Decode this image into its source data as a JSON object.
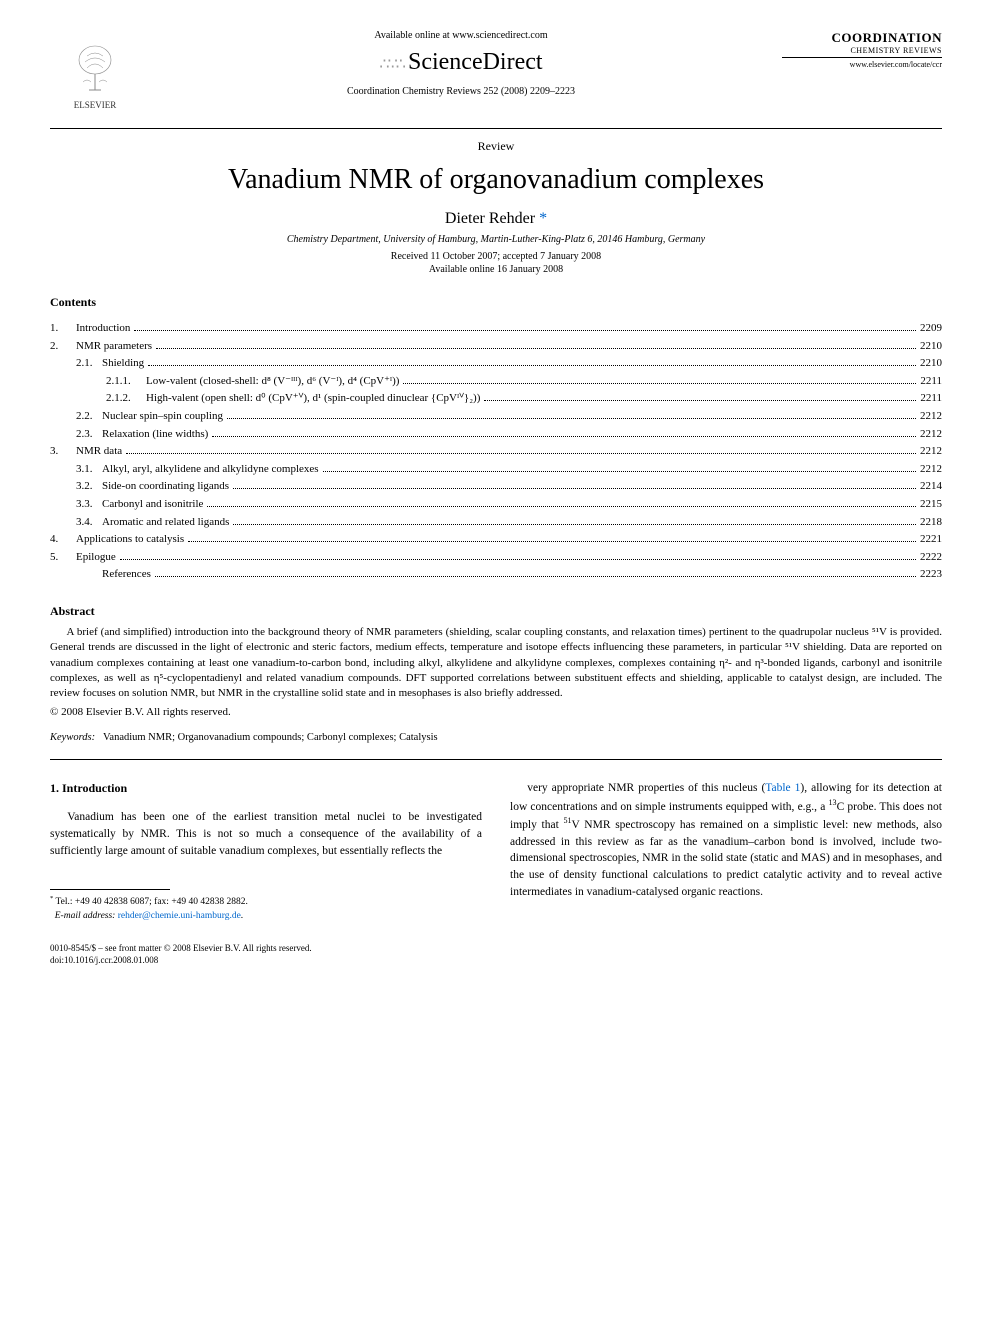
{
  "header": {
    "available_online": "Available online at www.sciencedirect.com",
    "sciencedirect": "ScienceDirect",
    "journal_citation": "Coordination Chemistry Reviews 252 (2008) 2209–2223",
    "elsevier_label": "ELSEVIER",
    "journal_logo_name": "COORDINATION",
    "journal_logo_sub": "CHEMISTRY REVIEWS",
    "journal_url": "www.elsevier.com/locate/ccr"
  },
  "article": {
    "type": "Review",
    "title": "Vanadium NMR of organovanadium complexes",
    "author": "Dieter Rehder",
    "author_mark": "*",
    "affiliation": "Chemistry Department, University of Hamburg, Martin-Luther-King-Platz 6, 20146 Hamburg, Germany",
    "received": "Received 11 October 2007; accepted 7 January 2008",
    "available": "Available online 16 January 2008"
  },
  "contents_label": "Contents",
  "toc": [
    {
      "num": "1.",
      "label": "Introduction",
      "page": "2209",
      "indent": 0
    },
    {
      "num": "2.",
      "label": "NMR parameters",
      "page": "2210",
      "indent": 0
    },
    {
      "num": "2.1.",
      "label": "Shielding",
      "page": "2210",
      "indent": 1
    },
    {
      "num": "2.1.1.",
      "label": "Low-valent (closed-shell: d⁸ (V⁻ᴵᴵᴵ), d⁶ (V⁻ᴵ), d⁴ (CpV⁺ᴵ))",
      "page": "2211",
      "indent": 2
    },
    {
      "num": "2.1.2.",
      "label": "High-valent (open shell: d⁰ (CpV⁺ⱽ), d¹ (spin-coupled dinuclear {CpVᴵⱽ}₂))",
      "page": "2211",
      "indent": 2
    },
    {
      "num": "2.2.",
      "label": "Nuclear spin–spin coupling",
      "page": "2212",
      "indent": 1
    },
    {
      "num": "2.3.",
      "label": "Relaxation (line widths)",
      "page": "2212",
      "indent": 1
    },
    {
      "num": "3.",
      "label": "NMR data",
      "page": "2212",
      "indent": 0
    },
    {
      "num": "3.1.",
      "label": "Alkyl, aryl, alkylidene and alkylidyne complexes",
      "page": "2212",
      "indent": 1
    },
    {
      "num": "3.2.",
      "label": "Side-on coordinating ligands",
      "page": "2214",
      "indent": 1
    },
    {
      "num": "3.3.",
      "label": "Carbonyl and isonitrile",
      "page": "2215",
      "indent": 1
    },
    {
      "num": "3.4.",
      "label": "Aromatic and related ligands",
      "page": "2218",
      "indent": 1
    },
    {
      "num": "4.",
      "label": "Applications to catalysis",
      "page": "2221",
      "indent": 0
    },
    {
      "num": "5.",
      "label": "Epilogue",
      "page": "2222",
      "indent": 0
    },
    {
      "num": "",
      "label": "References",
      "page": "2223",
      "indent": 1
    }
  ],
  "abstract": {
    "heading": "Abstract",
    "body": "A brief (and simplified) introduction into the background theory of NMR parameters (shielding, scalar coupling constants, and relaxation times) pertinent to the quadrupolar nucleus ⁵¹V is provided. General trends are discussed in the light of electronic and steric factors, medium effects, temperature and isotope effects influencing these parameters, in particular ⁵¹V shielding. Data are reported on vanadium complexes containing at least one vanadium-to-carbon bond, including alkyl, alkylidene and alkylidyne complexes, complexes containing η²- and η³-bonded ligands, carbonyl and isonitrile complexes, as well as η⁵-cyclopentadienyl and related vanadium compounds. DFT supported correlations between substituent effects and shielding, applicable to catalyst design, are included. The review focuses on solution NMR, but NMR in the crystalline solid state and in mesophases is also briefly addressed.",
    "copyright": "© 2008 Elsevier B.V. All rights reserved."
  },
  "keywords": {
    "label": "Keywords:",
    "text": "Vanadium NMR; Organovanadium compounds; Carbonyl complexes; Catalysis"
  },
  "section1": {
    "heading": "1. Introduction",
    "col1": "Vanadium has been one of the earliest transition metal nuclei to be investigated systematically by NMR. This is not so much a consequence of the availability of a sufficiently large amount of suitable vanadium complexes, but essentially reflects the",
    "col2": "very appropriate NMR properties of this nucleus (Table 1), allowing for its detection at low concentrations and on simple instruments equipped with, e.g., a ¹³C probe. This does not imply that ⁵¹V NMR spectroscopy has remained on a simplistic level: new methods, also addressed in this review as far as the vanadium–carbon bond is involved, include two-dimensional spectroscopies, NMR in the solid state (static and MAS) and in mesophases, and the use of density functional calculations to predict catalytic activity and to reveal active intermediates in vanadium-catalysed organic reactions.",
    "table_ref": "Table 1"
  },
  "footnote": {
    "mark": "*",
    "tel": "Tel.: +49 40 42838 6087; fax: +49 40 42838 2882.",
    "email_label": "E-mail address:",
    "email": "rehder@chemie.uni-hamburg.de"
  },
  "bottom": {
    "issn": "0010-8545/$ – see front matter © 2008 Elsevier B.V. All rights reserved.",
    "doi": "doi:10.1016/j.ccr.2008.01.008"
  }
}
